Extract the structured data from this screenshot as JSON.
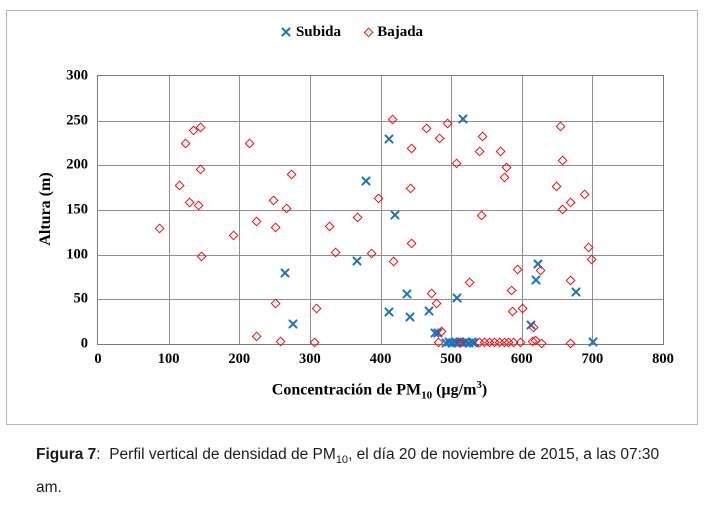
{
  "caption": {
    "label": "Figura 7",
    "colon": ":  ",
    "text_pre": "Perfil vertical de densidad de PM",
    "sub": "10",
    "text_post": ", el día 20 de noviembre de 2015, a las 07:30 am."
  },
  "chart_data": {
    "type": "scatter",
    "title": "",
    "ylabel": "Altura (m)",
    "xlabel_parts": {
      "pre": "Concentración de PM",
      "sub": "10",
      "mid": " (µg/m",
      "sup": "3",
      "post": ")"
    },
    "xlim": [
      0,
      800
    ],
    "ylim": [
      0,
      300
    ],
    "x_ticks": [
      0,
      100,
      200,
      300,
      400,
      500,
      600,
      700,
      800
    ],
    "y_ticks": [
      0,
      50,
      100,
      150,
      200,
      250,
      300
    ],
    "grid": true,
    "legend_position": "top-center",
    "series": [
      {
        "name": "Subida",
        "marker": "x",
        "color": "#1f72be",
        "points": [
          [
            412,
            230
          ],
          [
            517,
            252
          ],
          [
            421,
            144
          ],
          [
            380,
            182
          ],
          [
            367,
            93
          ],
          [
            265,
            79
          ],
          [
            276,
            22
          ],
          [
            412,
            36
          ],
          [
            442,
            30
          ],
          [
            438,
            56
          ],
          [
            469,
            37
          ],
          [
            508,
            51
          ],
          [
            477,
            12
          ],
          [
            482,
            12
          ],
          [
            493,
            1
          ],
          [
            497,
            2
          ],
          [
            501,
            1
          ],
          [
            505,
            2
          ],
          [
            509,
            1
          ],
          [
            513,
            2
          ],
          [
            517,
            1
          ],
          [
            521,
            2
          ],
          [
            525,
            1
          ],
          [
            529,
            2
          ],
          [
            533,
            1
          ],
          [
            613,
            21
          ],
          [
            620,
            72
          ],
          [
            623,
            90
          ],
          [
            677,
            58
          ],
          [
            701,
            2
          ]
        ]
      },
      {
        "name": "Bajada",
        "marker": "open-diamond",
        "color": "#f20d0d",
        "points": [
          [
            88,
            128
          ],
          [
            116,
            176
          ],
          [
            125,
            223
          ],
          [
            130,
            157
          ],
          [
            137,
            238
          ],
          [
            144,
            154
          ],
          [
            146,
            242
          ],
          [
            146,
            194
          ],
          [
            148,
            97
          ],
          [
            193,
            121
          ],
          [
            216,
            223
          ],
          [
            225,
            136
          ],
          [
            225,
            7
          ],
          [
            250,
            160
          ],
          [
            252,
            130
          ],
          [
            253,
            44
          ],
          [
            259,
            2
          ],
          [
            268,
            151
          ],
          [
            275,
            189
          ],
          [
            307,
            1
          ],
          [
            310,
            39
          ],
          [
            329,
            131
          ],
          [
            337,
            101
          ],
          [
            368,
            141
          ],
          [
            388,
            100
          ],
          [
            399,
            162
          ],
          [
            418,
            250
          ],
          [
            419,
            92
          ],
          [
            444,
            173
          ],
          [
            445,
            218
          ],
          [
            445,
            112
          ],
          [
            466,
            240
          ],
          [
            473,
            56
          ],
          [
            480,
            45
          ],
          [
            483,
            1
          ],
          [
            484,
            229
          ],
          [
            487,
            13
          ],
          [
            496,
            246
          ],
          [
            509,
            201
          ],
          [
            514,
            1
          ],
          [
            527,
            68
          ],
          [
            541,
            215
          ],
          [
            542,
            1
          ],
          [
            544,
            143
          ],
          [
            546,
            231
          ],
          [
            549,
            1
          ],
          [
            556,
            1
          ],
          [
            563,
            1
          ],
          [
            569,
            1
          ],
          [
            571,
            215
          ],
          [
            576,
            185
          ],
          [
            576,
            1
          ],
          [
            580,
            197
          ],
          [
            583,
            1
          ],
          [
            586,
            59
          ],
          [
            588,
            36
          ],
          [
            590,
            1
          ],
          [
            595,
            83
          ],
          [
            600,
            1
          ],
          [
            602,
            39
          ],
          [
            617,
            2
          ],
          [
            618,
            18
          ],
          [
            620,
            3
          ],
          [
            627,
            81
          ],
          [
            629,
            0
          ],
          [
            650,
            175
          ],
          [
            656,
            243
          ],
          [
            659,
            204
          ],
          [
            659,
            150
          ],
          [
            670,
            158
          ],
          [
            670,
            70
          ],
          [
            670,
            0
          ],
          [
            690,
            167
          ],
          [
            695,
            107
          ],
          [
            700,
            94
          ]
        ]
      }
    ]
  }
}
